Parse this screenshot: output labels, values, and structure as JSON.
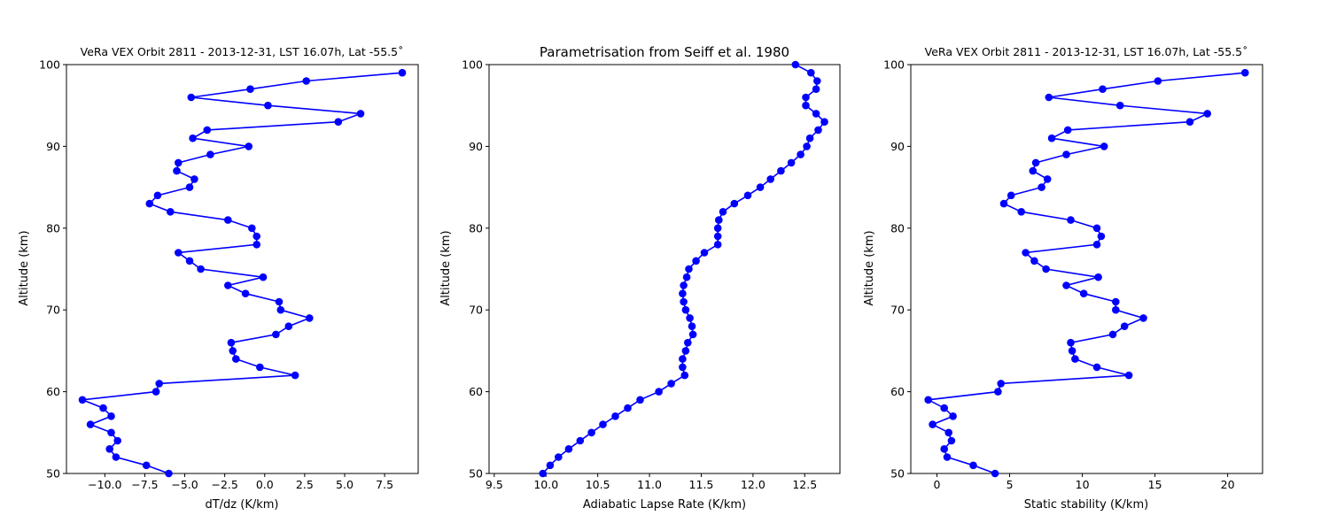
{
  "chart_data": [
    {
      "type": "line",
      "title": "VeRa VEX Orbit 2811 - 2013-12-31, LST 16.07h, Lat -55.5˚",
      "xlabel": "dT/dz (K/km)",
      "ylabel": "Altitude (km)",
      "xlim": [
        -12.4,
        9.6
      ],
      "ylim": [
        50,
        100
      ],
      "xticks": [
        -10.0,
        -7.5,
        -5.0,
        -2.5,
        0.0,
        2.5,
        5.0,
        7.5
      ],
      "xtick_labels": [
        "−10.0",
        "−7.5",
        "−5.0",
        "−2.5",
        "0.0",
        "2.5",
        "5.0",
        "7.5"
      ],
      "yticks": [
        50,
        60,
        70,
        80,
        90,
        100
      ],
      "ytick_labels": [
        "50",
        "60",
        "70",
        "80",
        "90",
        "100"
      ],
      "grid": false,
      "color": "#0000ff",
      "series": [
        {
          "x": [
            -6.0,
            -7.4,
            -9.3,
            -9.7,
            -9.2,
            -9.6,
            -10.9,
            -9.6,
            -10.1,
            -11.4,
            -6.8,
            -6.6,
            1.9,
            -0.3,
            -1.8,
            -2.0,
            -2.1,
            0.7,
            1.5,
            2.8,
            1.0,
            0.9,
            -1.2,
            -2.3,
            -0.1,
            -4.0,
            -4.7,
            -5.4,
            -0.5,
            -0.5,
            -0.8,
            -2.3,
            -5.9,
            -7.2,
            -6.7,
            -4.7,
            -4.4,
            -5.5,
            -5.4,
            -3.4,
            -1.0,
            -4.5,
            -3.6,
            4.6,
            6.0,
            0.2,
            -4.6,
            -0.9,
            2.6,
            8.6
          ],
          "y": [
            50,
            51,
            52,
            53,
            54,
            55,
            56,
            57,
            58,
            59,
            60,
            61,
            62,
            63,
            64,
            65,
            66,
            67,
            68,
            69,
            70,
            71,
            72,
            73,
            74,
            75,
            76,
            77,
            78,
            79,
            80,
            81,
            82,
            83,
            84,
            85,
            86,
            87,
            88,
            89,
            90,
            91,
            92,
            93,
            94,
            95,
            96,
            97,
            98,
            99
          ]
        }
      ]
    },
    {
      "type": "line",
      "title": "Parametrisation from Seiff et al. 1980",
      "xlabel": "Adiabatic Lapse Rate (K/km)",
      "ylabel": "Altitude (km)",
      "xlim": [
        9.45,
        12.84
      ],
      "ylim": [
        50,
        100
      ],
      "xticks": [
        9.5,
        10.0,
        10.5,
        11.0,
        11.5,
        12.0,
        12.5
      ],
      "xtick_labels": [
        "9.5",
        "10.0",
        "10.5",
        "11.0",
        "11.5",
        "12.0",
        "12.5"
      ],
      "yticks": [
        50,
        60,
        70,
        80,
        90,
        100
      ],
      "ytick_labels": [
        "50",
        "60",
        "70",
        "80",
        "90",
        "100"
      ],
      "grid": false,
      "color": "#0000ff",
      "series": [
        {
          "x": [
            9.97,
            10.04,
            10.12,
            10.22,
            10.33,
            10.44,
            10.55,
            10.67,
            10.79,
            10.91,
            11.09,
            11.21,
            11.34,
            11.32,
            11.32,
            11.35,
            11.37,
            11.42,
            11.41,
            11.39,
            11.35,
            11.33,
            11.32,
            11.33,
            11.36,
            11.38,
            11.45,
            11.53,
            11.66,
            11.66,
            11.66,
            11.67,
            11.71,
            11.82,
            11.95,
            12.07,
            12.17,
            12.27,
            12.37,
            12.46,
            12.52,
            12.55,
            12.63,
            12.69,
            12.61,
            12.51,
            12.51,
            12.61,
            12.62,
            12.56,
            12.41
          ],
          "y": [
            50,
            51,
            52,
            53,
            54,
            55,
            56,
            57,
            58,
            59,
            60,
            61,
            62,
            63,
            64,
            65,
            66,
            67,
            68,
            69,
            70,
            71,
            72,
            73,
            74,
            75,
            76,
            77,
            78,
            79,
            80,
            81,
            82,
            83,
            84,
            85,
            86,
            87,
            88,
            89,
            90,
            91,
            92,
            93,
            94,
            95,
            96,
            97,
            98,
            99,
            100
          ]
        }
      ]
    },
    {
      "type": "line",
      "title": "VeRa VEX Orbit 2811 - 2013-12-31, LST 16.07h, Lat -55.5˚",
      "xlabel": "Static stability (K/km)",
      "ylabel": "Altitude (km)",
      "xlim": [
        -1.8,
        22.4
      ],
      "ylim": [
        50,
        100
      ],
      "xticks": [
        0,
        5,
        10,
        15,
        20
      ],
      "xtick_labels": [
        "0",
        "5",
        "10",
        "15",
        "20"
      ],
      "yticks": [
        50,
        60,
        70,
        80,
        90,
        100
      ],
      "ytick_labels": [
        "50",
        "60",
        "70",
        "80",
        "90",
        "100"
      ],
      "grid": false,
      "color": "#0000ff",
      "series": [
        {
          "x": [
            4.0,
            2.5,
            0.7,
            0.5,
            1.0,
            0.8,
            -0.3,
            1.1,
            0.5,
            -0.6,
            4.2,
            4.4,
            13.2,
            11.0,
            9.5,
            9.3,
            9.2,
            12.1,
            12.9,
            14.2,
            12.3,
            12.3,
            10.1,
            8.9,
            11.1,
            7.5,
            6.7,
            6.1,
            11.0,
            11.3,
            11.0,
            9.2,
            5.8,
            4.6,
            5.1,
            7.2,
            7.6,
            6.6,
            6.8,
            8.9,
            11.5,
            7.9,
            9.0,
            17.4,
            18.6,
            12.6,
            7.7,
            11.4,
            15.2,
            21.2
          ],
          "y": [
            50,
            51,
            52,
            53,
            54,
            55,
            56,
            57,
            58,
            59,
            60,
            61,
            62,
            63,
            64,
            65,
            66,
            67,
            68,
            69,
            70,
            71,
            72,
            73,
            74,
            75,
            76,
            77,
            78,
            79,
            80,
            81,
            82,
            83,
            84,
            85,
            86,
            87,
            88,
            89,
            90,
            91,
            92,
            93,
            94,
            95,
            96,
            97,
            98,
            99
          ]
        }
      ]
    }
  ]
}
